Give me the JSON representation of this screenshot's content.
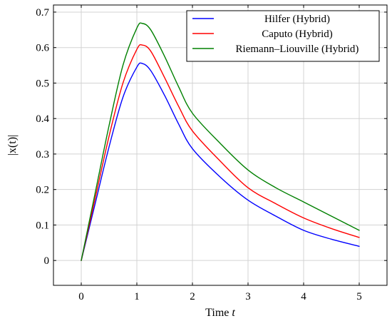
{
  "chart_data": {
    "type": "line",
    "title": "",
    "xlabel": "Time",
    "xlabel_var": "t",
    "ylabel": "|x(t)|",
    "xlim": [
      -0.5,
      5.5
    ],
    "ylim": [
      -0.07,
      0.72
    ],
    "xticks": [
      0,
      1,
      2,
      3,
      4,
      5
    ],
    "xtick_labels": [
      "0",
      "1",
      "2",
      "3",
      "4",
      "5"
    ],
    "yticks": [
      0,
      0.1,
      0.2,
      0.3,
      0.4,
      0.5,
      0.6,
      0.7
    ],
    "ytick_labels": [
      "0",
      "0.1",
      "0.2",
      "0.3",
      "0.4",
      "0.5",
      "0.6",
      "0.7"
    ],
    "grid": true,
    "legend_position": "top-right",
    "x": [
      0,
      0.25,
      0.5,
      0.75,
      1.0,
      1.1,
      1.25,
      1.5,
      1.75,
      2.0,
      2.5,
      3.0,
      3.5,
      4.0,
      4.5,
      5.0
    ],
    "series": [
      {
        "name": "Hilfer (Hybrid)",
        "color": "#0000ff",
        "values": [
          0,
          0.16,
          0.32,
          0.46,
          0.545,
          0.555,
          0.535,
          0.465,
          0.385,
          0.315,
          0.235,
          0.17,
          0.125,
          0.085,
          0.06,
          0.04
        ]
      },
      {
        "name": "Caputo (Hybrid)",
        "color": "#ff0000",
        "values": [
          0,
          0.175,
          0.35,
          0.5,
          0.595,
          0.607,
          0.59,
          0.515,
          0.435,
          0.365,
          0.28,
          0.205,
          0.16,
          0.12,
          0.09,
          0.065
        ]
      },
      {
        "name": "Riemann–Liouville (Hybrid)",
        "color": "#008000",
        "values": [
          0,
          0.19,
          0.38,
          0.55,
          0.655,
          0.668,
          0.65,
          0.575,
          0.49,
          0.415,
          0.33,
          0.255,
          0.205,
          0.165,
          0.125,
          0.085
        ]
      }
    ]
  }
}
